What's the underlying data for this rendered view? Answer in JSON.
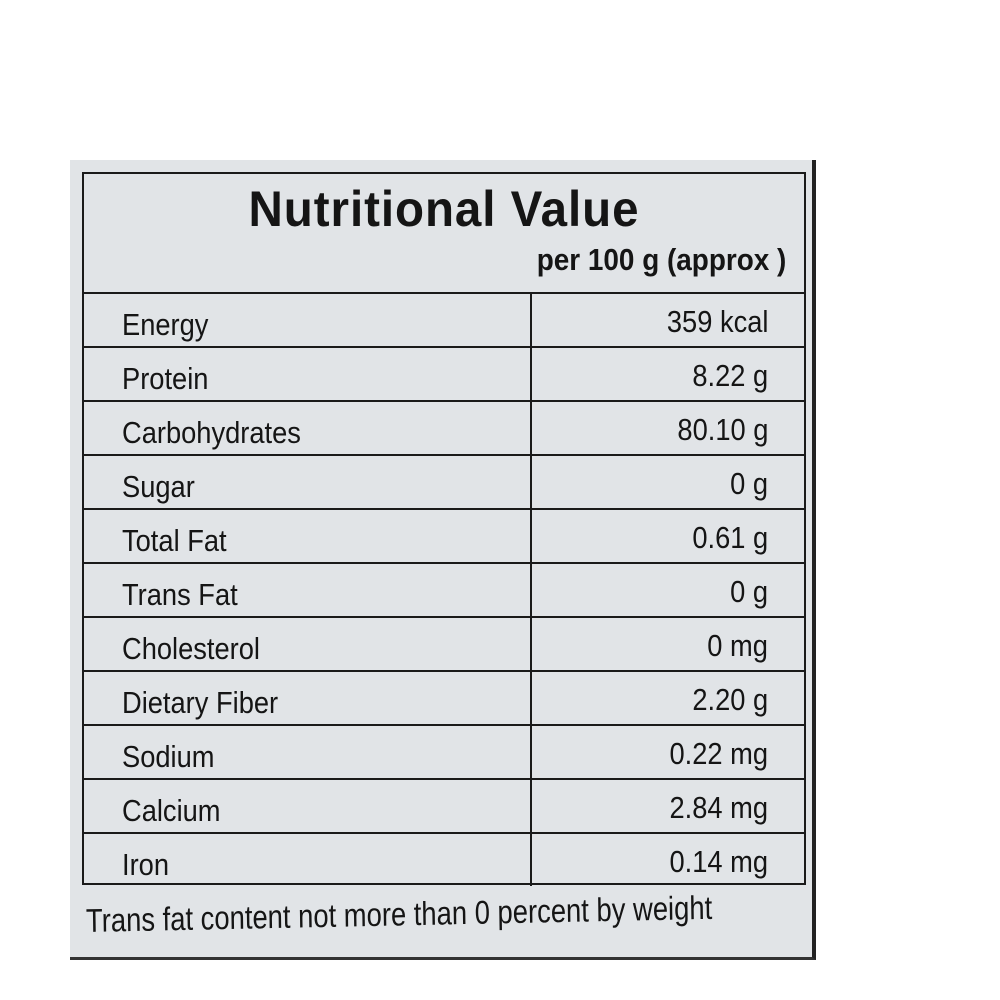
{
  "title": "Nutritional Value",
  "subtitle": "per 100 g  (approx )",
  "rows": [
    {
      "name": "Energy",
      "value": "359 kcal"
    },
    {
      "name": "Protein",
      "value": "8.22 g"
    },
    {
      "name": "Carbohydrates",
      "value": "80.10 g"
    },
    {
      "name": "Sugar",
      "value": "0 g"
    },
    {
      "name": "Total Fat",
      "value": "0.61 g"
    },
    {
      "name": "Trans Fat",
      "value": "0 g"
    },
    {
      "name": "Cholesterol",
      "value": "0 mg"
    },
    {
      "name": "Dietary Fiber",
      "value": "2.20 g"
    },
    {
      "name": "Sodium",
      "value": "0.22 mg"
    },
    {
      "name": "Calcium",
      "value": "2.84 mg"
    },
    {
      "name": "Iron",
      "value": "0.14 mg"
    }
  ],
  "footnote": "Trans fat content not more than 0 percent by weight"
}
